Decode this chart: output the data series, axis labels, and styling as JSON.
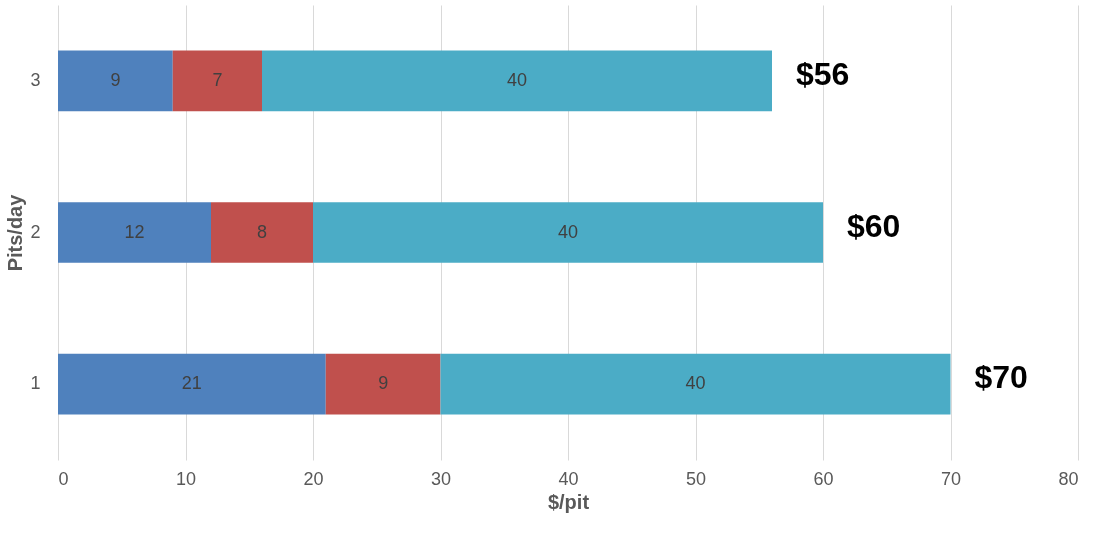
{
  "chart_data": {
    "type": "bar",
    "orientation": "horizontal",
    "stacked": true,
    "xlabel": "$/pit",
    "ylabel": "Pits/day",
    "categories": [
      "3",
      "2",
      "1"
    ],
    "series": [
      {
        "color": "#4f81bd",
        "values": [
          9,
          12,
          21
        ]
      },
      {
        "color": "#c0504d",
        "values": [
          7,
          8,
          9
        ]
      },
      {
        "color": "#4bacc6",
        "values": [
          40,
          40,
          40
        ]
      }
    ],
    "data_labels": true,
    "totals": [
      "$56",
      "$60",
      "$70"
    ],
    "xlim": [
      0,
      80
    ],
    "xticks": [
      0,
      10,
      20,
      30,
      40,
      50,
      60,
      70,
      80
    ],
    "grid": "x"
  }
}
